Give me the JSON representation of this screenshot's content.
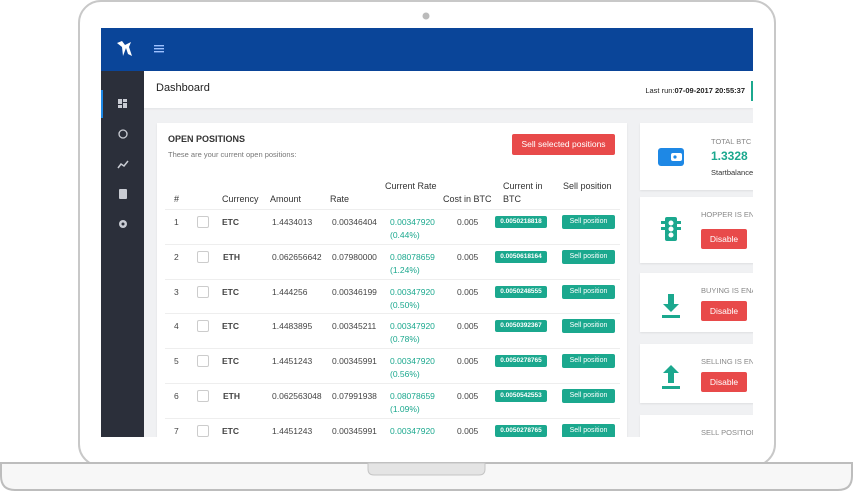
{
  "header": {
    "title": "Dashboard",
    "last_run_label": "Last run:",
    "last_run_value": "07-09-2017 20:55:37"
  },
  "positions": {
    "title": "OPEN POSITIONS",
    "subtitle": "These are your current open positions:",
    "button": "Sell selected positions"
  },
  "table": {
    "headers": [
      "#",
      "Currency",
      "Amount",
      "Rate",
      "Current Rate",
      "Cost in BTC",
      "Current in BTC",
      "Sell position"
    ],
    "rows": [
      {
        "num": "1",
        "currency": "ETC",
        "amount": "1.4434013",
        "rate": "0.00346404",
        "current": "0.00347920",
        "pct": "(0.44%)",
        "cost": "0.005",
        "current_btc": "0.0050218818",
        "action": "Sell position"
      },
      {
        "num": "2",
        "currency": "ETH",
        "amount": "0.062656642",
        "rate": "0.07980000",
        "current": "0.08078659",
        "pct": "(1.24%)",
        "cost": "0.005",
        "current_btc": "0.0050618164",
        "action": "Sell position"
      },
      {
        "num": "3",
        "currency": "ETC",
        "amount": "1.444256",
        "rate": "0.00346199",
        "current": "0.00347920",
        "pct": "(0.50%)",
        "cost": "0.005",
        "current_btc": "0.0050248555",
        "action": "Sell position"
      },
      {
        "num": "4",
        "currency": "ETC",
        "amount": "1.4483895",
        "rate": "0.00345211",
        "current": "0.00347920",
        "pct": "(0.78%)",
        "cost": "0.005",
        "current_btc": "0.0050392367",
        "action": "Sell position"
      },
      {
        "num": "5",
        "currency": "ETC",
        "amount": "1.4451243",
        "rate": "0.00345991",
        "current": "0.00347920",
        "pct": "(0.56%)",
        "cost": "0.005",
        "current_btc": "0.0050278765",
        "action": "Sell position"
      },
      {
        "num": "6",
        "currency": "ETH",
        "amount": "0.062563048",
        "rate": "0.07991938",
        "current": "0.08078659",
        "pct": "(1.09%)",
        "cost": "0.005",
        "current_btc": "0.0050542553",
        "action": "Sell position"
      },
      {
        "num": "7",
        "currency": "ETC",
        "amount": "1.4451243",
        "rate": "0.00345991",
        "current": "0.00347920",
        "cost": "0.005",
        "current_btc": "0.0050278765",
        "action": "Sell position"
      }
    ]
  },
  "cards": [
    {
      "label": "TOTAL BTC",
      "value": "1.3328",
      "sub": "Startbalance"
    },
    {
      "label": "HOPPER IS ENABLED",
      "button": "Disable"
    },
    {
      "label": "BUYING IS ENABLED",
      "button": "Disable"
    },
    {
      "label": "SELLING IS ENABLED",
      "button": "Disable"
    },
    {
      "label": "SELL POSITIONS"
    }
  ]
}
